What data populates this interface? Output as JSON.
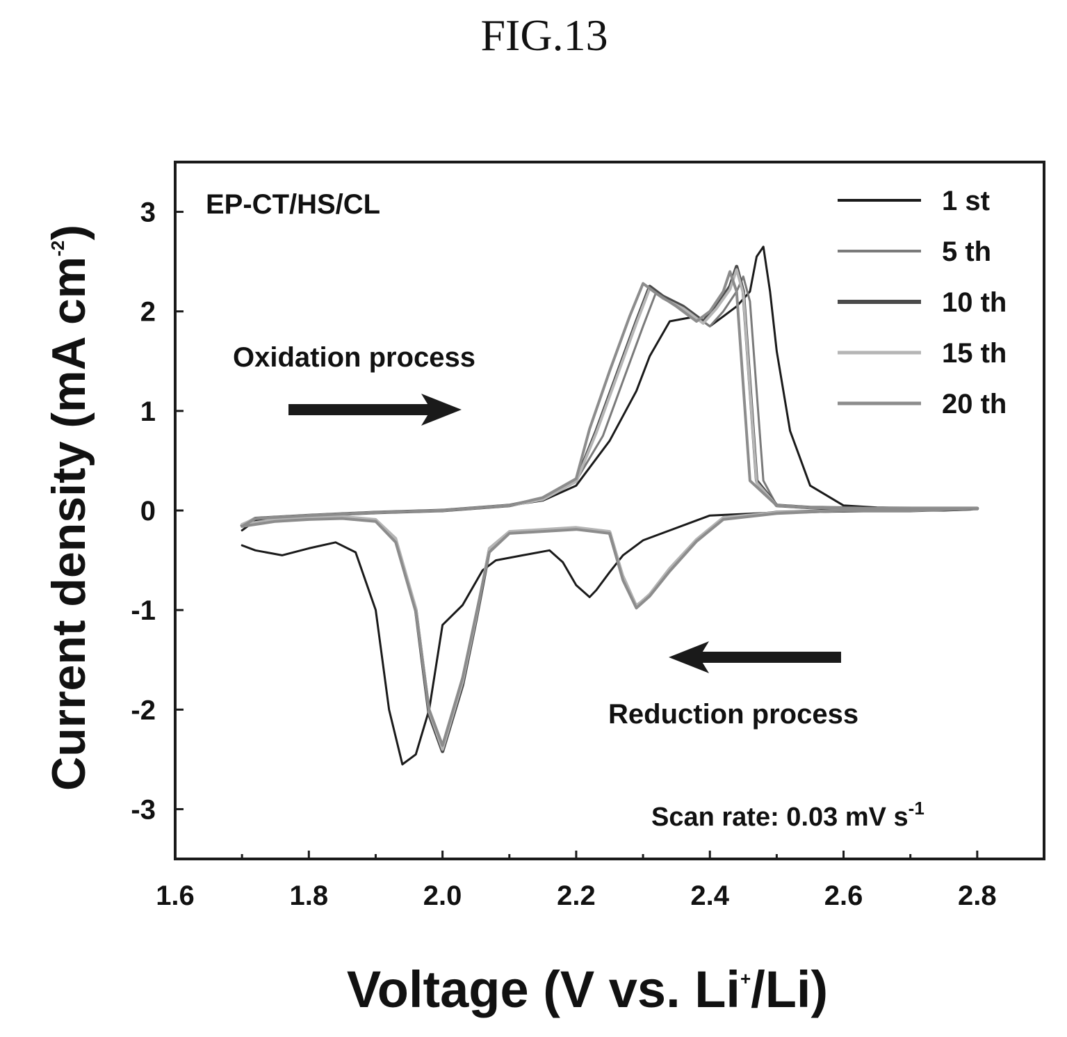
{
  "figure": {
    "title": "FIG.13"
  },
  "chart_data": {
    "type": "line",
    "title": "",
    "xlabel": "Voltage (V vs. Li+/Li)",
    "xlabel_main": "Voltage (V vs. Li",
    "xlabel_sup": "+",
    "xlabel_tail": "/Li)",
    "ylabel": "Current density (mA cm-2)",
    "ylabel_main": "Current density (mA cm",
    "ylabel_sup": "-2",
    "ylabel_tail": ")",
    "xlim": [
      1.6,
      2.9
    ],
    "ylim": [
      -3.5,
      3.5
    ],
    "xticks": [
      1.6,
      1.8,
      2.0,
      2.2,
      2.4,
      2.6,
      2.8
    ],
    "xtick_labels": [
      "1.6",
      "1.8",
      "2.0",
      "2.2",
      "2.4",
      "2.6",
      "2.8"
    ],
    "yticks": [
      3,
      2,
      1,
      0,
      -1,
      -2,
      -3
    ],
    "ytick_labels": [
      "3",
      "2",
      "1",
      "0",
      "-1",
      "-2",
      "-3"
    ],
    "grid": false,
    "legend_position": "top-right",
    "sample_label": "EP-CT/HS/CL",
    "scan_rate_main": "Scan rate: 0.03 mV s",
    "scan_rate_sup": "-1",
    "annotations": {
      "oxidation": "Oxidation process",
      "reduction": "Reduction process"
    },
    "series": [
      {
        "name": "1 st",
        "color": "#1a1a1a",
        "width": 3,
        "x": [
          1.7,
          1.72,
          1.76,
          1.8,
          1.84,
          1.87,
          1.9,
          1.92,
          1.94,
          1.96,
          1.98,
          2.0,
          2.03,
          2.06,
          2.08,
          2.12,
          2.16,
          2.18,
          2.2,
          2.22,
          2.23,
          2.25,
          2.27,
          2.3,
          2.34,
          2.38,
          2.4,
          2.5,
          2.6,
          2.7,
          2.75,
          2.79,
          2.8,
          2.75,
          2.65,
          2.6,
          2.55,
          2.52,
          2.5,
          2.49,
          2.48,
          2.47,
          2.46,
          2.44,
          2.42,
          2.4,
          2.38,
          2.34,
          2.31,
          2.29,
          2.25,
          2.2,
          2.15,
          2.1,
          2.0,
          1.9,
          1.8,
          1.72,
          1.7
        ],
        "y": [
          -0.35,
          -0.4,
          -0.45,
          -0.38,
          -0.32,
          -0.42,
          -1.0,
          -2.0,
          -2.55,
          -2.45,
          -2.0,
          -1.15,
          -0.95,
          -0.6,
          -0.5,
          -0.45,
          -0.4,
          -0.52,
          -0.75,
          -0.87,
          -0.8,
          -0.62,
          -0.45,
          -0.3,
          -0.2,
          -0.1,
          -0.05,
          -0.02,
          -0.01,
          0.0,
          0.0,
          0.01,
          0.02,
          0.02,
          0.03,
          0.05,
          0.25,
          0.8,
          1.6,
          2.2,
          2.65,
          2.55,
          2.2,
          2.05,
          1.95,
          1.85,
          1.95,
          1.9,
          1.55,
          1.2,
          0.7,
          0.25,
          0.1,
          0.05,
          0.0,
          -0.02,
          -0.05,
          -0.1,
          -0.2
        ]
      },
      {
        "name": "5 th",
        "color": "#7a7a7a",
        "width": 3,
        "x": [
          1.7,
          1.75,
          1.8,
          1.85,
          1.9,
          1.93,
          1.96,
          1.98,
          2.0,
          2.03,
          2.05,
          2.07,
          2.1,
          2.15,
          2.2,
          2.25,
          2.27,
          2.29,
          2.31,
          2.34,
          2.38,
          2.42,
          2.5,
          2.6,
          2.7,
          2.8,
          2.75,
          2.65,
          2.55,
          2.5,
          2.48,
          2.47,
          2.46,
          2.45,
          2.44,
          2.42,
          2.4,
          2.37,
          2.34,
          2.32,
          2.3,
          2.27,
          2.24,
          2.2,
          2.15,
          2.1,
          2.0,
          1.9,
          1.8,
          1.72,
          1.7
        ],
        "y": [
          -0.15,
          -0.1,
          -0.08,
          -0.07,
          -0.1,
          -0.3,
          -1.0,
          -2.0,
          -2.38,
          -1.7,
          -1.1,
          -0.4,
          -0.22,
          -0.2,
          -0.18,
          -0.22,
          -0.65,
          -0.95,
          -0.85,
          -0.6,
          -0.3,
          -0.08,
          -0.02,
          0.0,
          0.0,
          0.02,
          0.02,
          0.02,
          0.03,
          0.05,
          0.3,
          1.2,
          2.1,
          2.35,
          2.2,
          2.0,
          1.85,
          2.0,
          2.1,
          2.2,
          1.85,
          1.3,
          0.75,
          0.3,
          0.12,
          0.05,
          0.0,
          -0.02,
          -0.05,
          -0.08,
          -0.15
        ]
      },
      {
        "name": "10 th",
        "color": "#4a4a4a",
        "width": 5,
        "x": [
          1.7,
          1.75,
          1.8,
          1.85,
          1.9,
          1.93,
          1.96,
          1.98,
          2.0,
          2.03,
          2.05,
          2.07,
          2.1,
          2.15,
          2.2,
          2.25,
          2.27,
          2.29,
          2.31,
          2.34,
          2.38,
          2.42,
          2.5,
          2.6,
          2.7,
          2.8,
          2.75,
          2.65,
          2.55,
          2.5,
          2.47,
          2.46,
          2.45,
          2.44,
          2.43,
          2.41,
          2.39,
          2.36,
          2.33,
          2.31,
          2.29,
          2.26,
          2.23,
          2.2,
          2.15,
          2.1,
          2.0,
          1.9,
          1.8,
          1.72,
          1.7
        ],
        "y": [
          -0.15,
          -0.1,
          -0.08,
          -0.07,
          -0.1,
          -0.3,
          -1.0,
          -2.05,
          -2.42,
          -1.75,
          -1.1,
          -0.4,
          -0.22,
          -0.2,
          -0.18,
          -0.22,
          -0.68,
          -0.97,
          -0.85,
          -0.6,
          -0.3,
          -0.08,
          -0.02,
          0.0,
          0.0,
          0.02,
          0.02,
          0.02,
          0.03,
          0.05,
          0.3,
          1.25,
          2.2,
          2.45,
          2.25,
          2.05,
          1.9,
          2.05,
          2.15,
          2.25,
          1.9,
          1.35,
          0.8,
          0.3,
          0.12,
          0.05,
          0.0,
          -0.02,
          -0.05,
          -0.08,
          -0.15
        ]
      },
      {
        "name": "15 th",
        "color": "#b5b5b5",
        "width": 4,
        "x": [
          1.7,
          1.75,
          1.8,
          1.85,
          1.9,
          1.93,
          1.96,
          1.98,
          2.0,
          2.03,
          2.05,
          2.07,
          2.1,
          2.15,
          2.2,
          2.25,
          2.27,
          2.29,
          2.31,
          2.34,
          2.38,
          2.42,
          2.5,
          2.6,
          2.7,
          2.8,
          2.75,
          2.65,
          2.55,
          2.5,
          2.47,
          2.46,
          2.45,
          2.44,
          2.43,
          2.41,
          2.39,
          2.36,
          2.33,
          2.31,
          2.29,
          2.26,
          2.23,
          2.2,
          2.15,
          2.1,
          2.0,
          1.9,
          1.8,
          1.72,
          1.7
        ],
        "y": [
          -0.14,
          -0.09,
          -0.07,
          -0.06,
          -0.09,
          -0.28,
          -0.98,
          -2.02,
          -2.4,
          -1.72,
          -1.08,
          -0.38,
          -0.21,
          -0.19,
          -0.17,
          -0.21,
          -0.66,
          -0.96,
          -0.84,
          -0.58,
          -0.29,
          -0.07,
          -0.02,
          0.0,
          0.0,
          0.02,
          0.02,
          0.02,
          0.03,
          0.05,
          0.28,
          1.22,
          2.18,
          2.42,
          2.22,
          2.03,
          1.88,
          2.03,
          2.13,
          2.23,
          1.88,
          1.33,
          0.78,
          0.29,
          0.11,
          0.05,
          0.0,
          -0.02,
          -0.05,
          -0.08,
          -0.14
        ]
      },
      {
        "name": "20 th",
        "color": "#8c8c8c",
        "width": 4,
        "x": [
          1.7,
          1.75,
          1.8,
          1.85,
          1.9,
          1.93,
          1.96,
          1.98,
          2.0,
          2.03,
          2.05,
          2.07,
          2.1,
          2.15,
          2.2,
          2.25,
          2.27,
          2.29,
          2.31,
          2.34,
          2.38,
          2.42,
          2.5,
          2.6,
          2.7,
          2.8,
          2.75,
          2.65,
          2.55,
          2.5,
          2.46,
          2.45,
          2.44,
          2.43,
          2.42,
          2.4,
          2.38,
          2.35,
          2.32,
          2.3,
          2.28,
          2.25,
          2.22,
          2.2,
          2.15,
          2.1,
          2.0,
          1.9,
          1.8,
          1.72,
          1.7
        ],
        "y": [
          -0.16,
          -0.11,
          -0.09,
          -0.08,
          -0.11,
          -0.32,
          -1.02,
          -2.0,
          -2.36,
          -1.68,
          -1.05,
          -0.42,
          -0.23,
          -0.21,
          -0.19,
          -0.23,
          -0.7,
          -0.98,
          -0.86,
          -0.61,
          -0.31,
          -0.09,
          -0.03,
          0.0,
          0.0,
          0.02,
          0.02,
          0.02,
          0.03,
          0.05,
          0.3,
          1.25,
          2.2,
          2.4,
          2.2,
          2.0,
          1.9,
          2.05,
          2.18,
          2.28,
          1.95,
          1.4,
          0.82,
          0.32,
          0.13,
          0.05,
          0.0,
          -0.02,
          -0.05,
          -0.08,
          -0.16
        ]
      }
    ]
  }
}
